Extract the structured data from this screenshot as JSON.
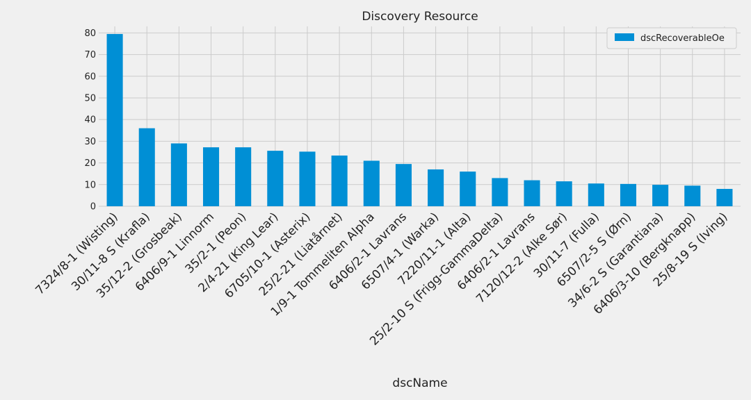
{
  "chart_data": {
    "type": "bar",
    "title": "Discovery Resource",
    "xlabel": "dscName",
    "ylabel": "",
    "legend": {
      "placement": "top-right",
      "entries": [
        "dscRecoverableOe"
      ]
    },
    "grid": true,
    "ylim": [
      0,
      83
    ],
    "yticks": [
      0,
      10,
      20,
      30,
      40,
      50,
      60,
      70,
      80
    ],
    "bar_color": "#008fd5",
    "categories": [
      "7324/8-1 (Wisting)",
      "30/11-8 S (Krafla)",
      "35/12-2 (Grosbeak)",
      "6406/9-1 Linnorm",
      "35/2-1 (Peon)",
      "2/4-21 (King Lear)",
      "6705/10-1 (Asterix)",
      "25/2-21 (Liatårnet)",
      "1/9-1 Tommeliten Alpha",
      "6406/2-1 Lavrans",
      "6507/4-1 (Warka)",
      "7220/11-1 (Alta)",
      "25/2-10 S (Frigg-GammaDelta)",
      "6406/2-1 Lavrans",
      "7120/12-2 (Alke Sør)",
      "30/11-7 (Fulla)",
      "6507/2-5 S (Ørn)",
      "34/6-2 S (Garantiana)",
      "6406/3-10 (Bergknapp)",
      "25/8-19 S (Iving)"
    ],
    "series": [
      {
        "name": "dscRecoverableOe",
        "values": [
          79.5,
          36.0,
          29.0,
          27.2,
          27.2,
          25.6,
          25.2,
          23.4,
          21.0,
          19.5,
          17.0,
          16.0,
          13.0,
          12.0,
          11.5,
          10.5,
          10.3,
          9.9,
          9.5,
          8.0
        ]
      }
    ]
  }
}
